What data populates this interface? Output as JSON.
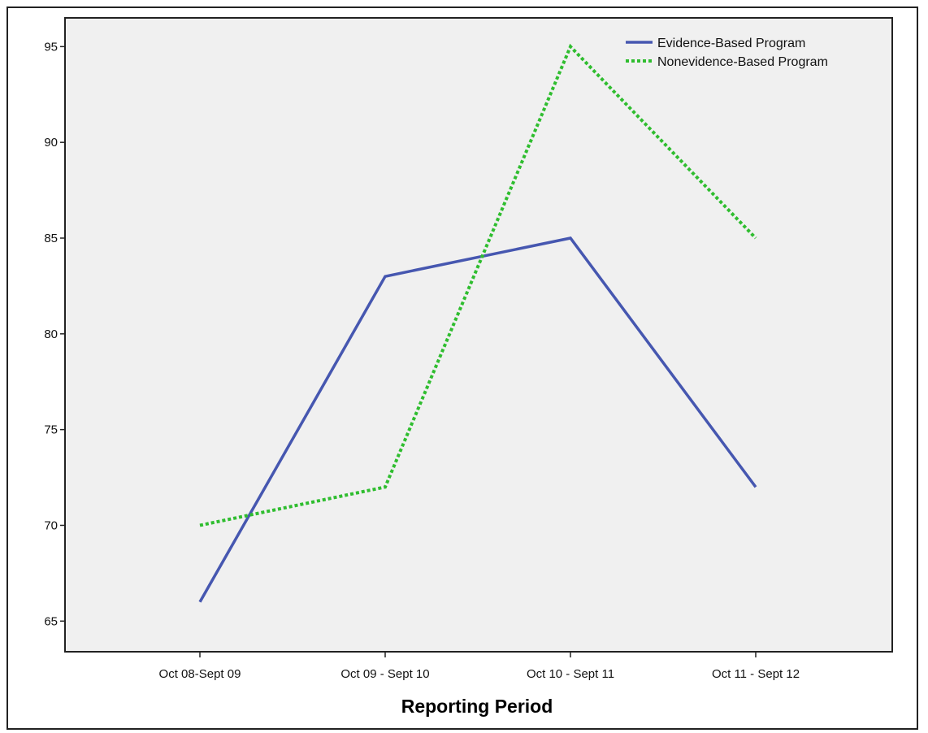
{
  "chart_data": {
    "type": "line",
    "title": "",
    "xlabel": "Reporting Period",
    "ylabel": "",
    "categories": [
      "Oct 08-Sept 09",
      "Oct 09 - Sept 10",
      "Oct 10 - Sept 11",
      "Oct 11 - Sept 12"
    ],
    "yticks": [
      65,
      70,
      75,
      80,
      85,
      90,
      95
    ],
    "ylim": [
      63.4,
      96.5
    ],
    "grid": false,
    "legend_position": "top-right",
    "series": [
      {
        "name": "Evidence-Based Program",
        "values": [
          66,
          83,
          85,
          72
        ],
        "color": "#4657b0",
        "style": "solid"
      },
      {
        "name": "Nonevidence-Based Program",
        "values": [
          70,
          72,
          95,
          85
        ],
        "color": "#2fbd2f",
        "style": "dotted"
      }
    ],
    "plot_background": "#f0f0f0"
  }
}
